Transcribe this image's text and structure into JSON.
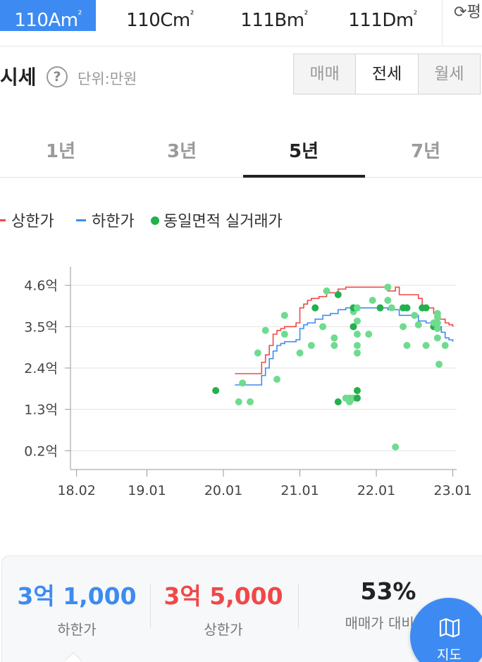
{
  "area_tabs": [
    {
      "label": "110Am",
      "sup": "²",
      "active": true
    },
    {
      "label": "110Cm",
      "sup": "²",
      "active": false
    },
    {
      "label": "111Bm",
      "sup": "²",
      "active": false
    },
    {
      "label": "111Dm",
      "sup": "²",
      "active": false
    }
  ],
  "refresh": {
    "icon": "refresh-icon",
    "label": "평"
  },
  "header": {
    "title": "시세",
    "help_glyph": "?",
    "unit": "단위:만원"
  },
  "trade_type": {
    "options": [
      "매매",
      "전세",
      "월세"
    ],
    "selected": "전세"
  },
  "period_tabs": {
    "options": [
      "1년",
      "3년",
      "5년",
      "7년"
    ],
    "selected": "5년"
  },
  "legend": {
    "upper": {
      "label": "상한가",
      "color": "#f04848"
    },
    "lower": {
      "label": "하한가",
      "color": "#3d8bf2"
    },
    "deals": {
      "label": "동일면적 실거래가",
      "color": "#22b14c"
    }
  },
  "chart_data": {
    "type": "line",
    "y_ticks": [
      "4.6억",
      "3.5억",
      "2.4억",
      "1.3억",
      "0.2억"
    ],
    "y_tick_values": [
      4.6,
      3.5,
      2.4,
      1.3,
      0.2
    ],
    "x_ticks": [
      "18.02",
      "19.01",
      "20.01",
      "21.01",
      "22.01",
      "23.01"
    ],
    "x_tick_values": [
      2018.08,
      2019.0,
      2020.0,
      2021.0,
      2022.0,
      2023.0
    ],
    "ylim": [
      -0.3,
      5.1
    ],
    "xlim": [
      2018.0,
      2023.05
    ],
    "grid": "horizontal",
    "series": [
      {
        "name": "상한가",
        "color": "#f04848",
        "x": [
          2020.15,
          2020.4,
          2020.5,
          2020.55,
          2020.6,
          2020.65,
          2020.7,
          2020.75,
          2020.8,
          2020.95,
          2021.0,
          2021.05,
          2021.1,
          2021.15,
          2021.25,
          2021.35,
          2021.5,
          2021.6,
          2022.0,
          2022.15,
          2022.25,
          2022.3,
          2022.55,
          2022.6,
          2022.75,
          2022.8,
          2022.9,
          2022.95,
          2023.0
        ],
        "values": [
          2.25,
          2.25,
          2.55,
          2.75,
          3.0,
          3.3,
          3.4,
          3.45,
          3.5,
          3.6,
          4.0,
          4.1,
          4.2,
          4.25,
          4.3,
          4.4,
          4.5,
          4.55,
          4.55,
          4.45,
          4.55,
          4.35,
          4.25,
          4.0,
          3.85,
          3.7,
          3.6,
          3.55,
          3.5
        ]
      },
      {
        "name": "하한가",
        "color": "#3d8bf2",
        "x": [
          2020.15,
          2020.4,
          2020.5,
          2020.55,
          2020.6,
          2020.65,
          2020.7,
          2020.75,
          2020.8,
          2020.95,
          2021.0,
          2021.05,
          2021.1,
          2021.2,
          2021.3,
          2021.4,
          2021.5,
          2021.6,
          2022.0,
          2022.15,
          2022.3,
          2022.55,
          2022.65,
          2022.8,
          2022.85,
          2022.9,
          2022.95,
          2023.0
        ],
        "values": [
          1.95,
          1.95,
          2.2,
          2.4,
          2.65,
          2.85,
          3.0,
          3.05,
          3.1,
          3.15,
          3.45,
          3.55,
          3.6,
          3.7,
          3.8,
          3.85,
          3.95,
          4.0,
          4.0,
          3.95,
          3.8,
          3.65,
          3.6,
          3.5,
          3.35,
          3.2,
          3.15,
          3.1
        ]
      }
    ],
    "scatter": {
      "name": "동일면적 실거래가",
      "light_color": "#6fdb8f",
      "dark_color": "#22b14c",
      "points": [
        {
          "x": 2019.9,
          "y": 1.8,
          "dark": true
        },
        {
          "x": 2020.2,
          "y": 1.5,
          "dark": false
        },
        {
          "x": 2020.25,
          "y": 2.0,
          "dark": false
        },
        {
          "x": 2020.35,
          "y": 1.5,
          "dark": false
        },
        {
          "x": 2020.45,
          "y": 2.8,
          "dark": false
        },
        {
          "x": 2020.55,
          "y": 3.4,
          "dark": false
        },
        {
          "x": 2020.7,
          "y": 2.1,
          "dark": false
        },
        {
          "x": 2020.8,
          "y": 3.3,
          "dark": false
        },
        {
          "x": 2020.8,
          "y": 3.8,
          "dark": false
        },
        {
          "x": 2021.0,
          "y": 2.8,
          "dark": false
        },
        {
          "x": 2021.15,
          "y": 3.0,
          "dark": false
        },
        {
          "x": 2021.2,
          "y": 4.0,
          "dark": true
        },
        {
          "x": 2021.3,
          "y": 3.5,
          "dark": false
        },
        {
          "x": 2021.35,
          "y": 4.45,
          "dark": false
        },
        {
          "x": 2021.45,
          "y": 3.0,
          "dark": false
        },
        {
          "x": 2021.45,
          "y": 3.2,
          "dark": false
        },
        {
          "x": 2021.5,
          "y": 1.5,
          "dark": true
        },
        {
          "x": 2021.5,
          "y": 4.35,
          "dark": true
        },
        {
          "x": 2021.6,
          "y": 1.6,
          "dark": false
        },
        {
          "x": 2021.65,
          "y": 1.6,
          "dark": false
        },
        {
          "x": 2021.65,
          "y": 1.5,
          "dark": false
        },
        {
          "x": 2021.7,
          "y": 1.6,
          "dark": false
        },
        {
          "x": 2021.7,
          "y": 3.5,
          "dark": true
        },
        {
          "x": 2021.7,
          "y": 3.9,
          "dark": false
        },
        {
          "x": 2021.7,
          "y": 4.0,
          "dark": true
        },
        {
          "x": 2021.75,
          "y": 1.6,
          "dark": true
        },
        {
          "x": 2021.75,
          "y": 1.8,
          "dark": true
        },
        {
          "x": 2021.75,
          "y": 2.8,
          "dark": false
        },
        {
          "x": 2021.75,
          "y": 3.0,
          "dark": false
        },
        {
          "x": 2021.75,
          "y": 3.3,
          "dark": false
        },
        {
          "x": 2021.75,
          "y": 3.65,
          "dark": false
        },
        {
          "x": 2021.75,
          "y": 4.0,
          "dark": false
        },
        {
          "x": 2021.9,
          "y": 3.3,
          "dark": false
        },
        {
          "x": 2021.95,
          "y": 4.2,
          "dark": false
        },
        {
          "x": 2022.05,
          "y": 4.0,
          "dark": true
        },
        {
          "x": 2022.15,
          "y": 4.2,
          "dark": false
        },
        {
          "x": 2022.15,
          "y": 4.55,
          "dark": false
        },
        {
          "x": 2022.2,
          "y": 4.0,
          "dark": false
        },
        {
          "x": 2022.25,
          "y": 0.3,
          "dark": false
        },
        {
          "x": 2022.35,
          "y": 3.5,
          "dark": false
        },
        {
          "x": 2022.35,
          "y": 4.0,
          "dark": true
        },
        {
          "x": 2022.4,
          "y": 3.0,
          "dark": false
        },
        {
          "x": 2022.4,
          "y": 4.0,
          "dark": true
        },
        {
          "x": 2022.5,
          "y": 3.8,
          "dark": false
        },
        {
          "x": 2022.55,
          "y": 3.55,
          "dark": false
        },
        {
          "x": 2022.6,
          "y": 4.0,
          "dark": true
        },
        {
          "x": 2022.65,
          "y": 3.0,
          "dark": false
        },
        {
          "x": 2022.65,
          "y": 4.0,
          "dark": true
        },
        {
          "x": 2022.75,
          "y": 3.5,
          "dark": true
        },
        {
          "x": 2022.75,
          "y": 3.6,
          "dark": false
        },
        {
          "x": 2022.8,
          "y": 3.2,
          "dark": false
        },
        {
          "x": 2022.8,
          "y": 3.45,
          "dark": false
        },
        {
          "x": 2022.8,
          "y": 3.6,
          "dark": false
        },
        {
          "x": 2022.8,
          "y": 3.75,
          "dark": false
        },
        {
          "x": 2022.8,
          "y": 3.85,
          "dark": false
        },
        {
          "x": 2022.82,
          "y": 2.5,
          "dark": false
        },
        {
          "x": 2022.9,
          "y": 3.0,
          "dark": false
        }
      ]
    }
  },
  "stats": {
    "lower": {
      "value": "3억 1,000",
      "label": "하한가",
      "color": "#3d8bf2"
    },
    "upper": {
      "value": "3억 5,000",
      "label": "상한가",
      "color": "#f04848"
    },
    "ratio": {
      "value": "53%",
      "label": "매매가 대비 전",
      "color": "#222222"
    }
  },
  "map_button": {
    "icon": "map-icon",
    "label": "지도"
  }
}
